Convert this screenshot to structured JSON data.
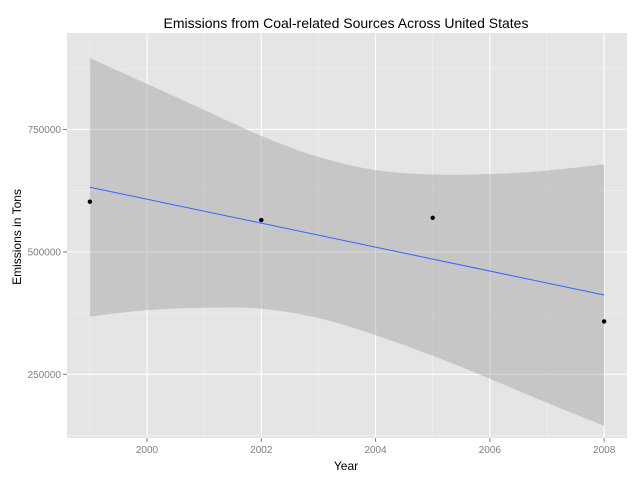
{
  "chart_data": {
    "type": "scatter",
    "title": "Emissions from Coal-related Sources Across United States",
    "xlabel": "Year",
    "ylabel": "Emissions in Tons",
    "xlim": [
      1998.6,
      2008.4
    ],
    "ylim": [
      120000,
      947000
    ],
    "x_ticks": [
      2000,
      2002,
      2004,
      2006,
      2008
    ],
    "y_ticks": [
      250000,
      500000,
      750000
    ],
    "grid": true,
    "background": "#e5e5e5",
    "points": [
      {
        "x": 1999,
        "y": 602600
      },
      {
        "x": 2002,
        "y": 565000
      },
      {
        "x": 2005,
        "y": 569700
      },
      {
        "x": 2008,
        "y": 358000
      }
    ],
    "trend_line": {
      "method": "linear",
      "color": "#3366ff",
      "start": {
        "x": 1999,
        "y": 632000
      },
      "end": {
        "x": 2008,
        "y": 412000
      }
    },
    "confidence_band": {
      "color": "#999999",
      "upper": [
        {
          "x": 1999,
          "y": 896000
        },
        {
          "x": 2000,
          "y": 843000
        },
        {
          "x": 2001,
          "y": 790000
        },
        {
          "x": 2002,
          "y": 737000
        },
        {
          "x": 2003,
          "y": 694000
        },
        {
          "x": 2004,
          "y": 667000
        },
        {
          "x": 2005,
          "y": 658000
        },
        {
          "x": 2006,
          "y": 659000
        },
        {
          "x": 2007,
          "y": 666000
        },
        {
          "x": 2008,
          "y": 679000
        }
      ],
      "lower": [
        {
          "x": 1999,
          "y": 368000
        },
        {
          "x": 2000,
          "y": 381000
        },
        {
          "x": 2001,
          "y": 386000
        },
        {
          "x": 2002,
          "y": 384000
        },
        {
          "x": 2003,
          "y": 365000
        },
        {
          "x": 2004,
          "y": 330000
        },
        {
          "x": 2005,
          "y": 288000
        },
        {
          "x": 2006,
          "y": 241000
        },
        {
          "x": 2007,
          "y": 192000
        },
        {
          "x": 2008,
          "y": 145000
        }
      ]
    }
  }
}
